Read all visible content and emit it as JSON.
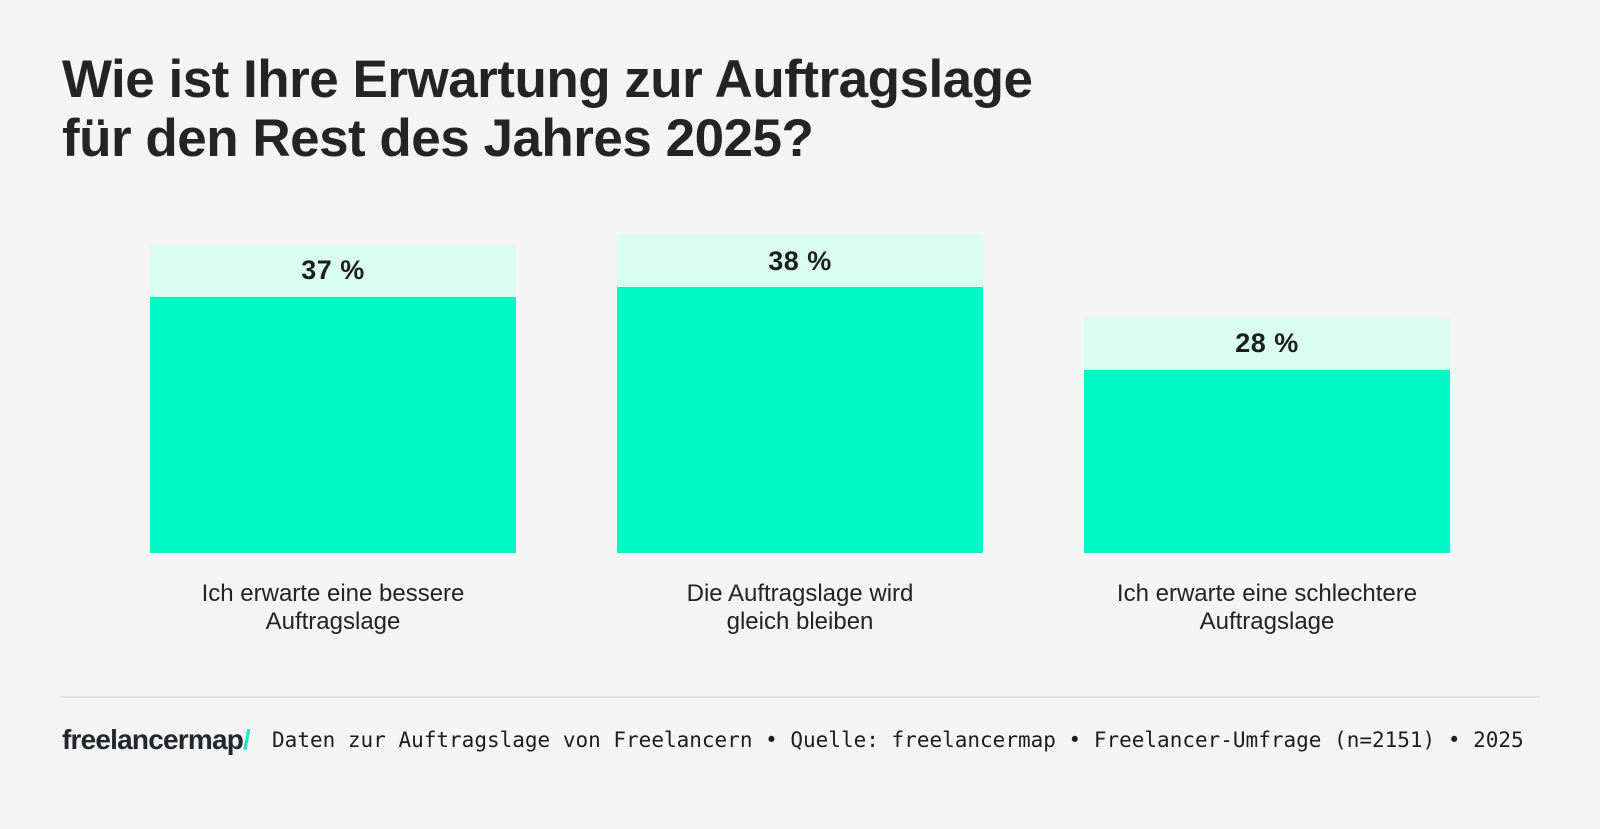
{
  "page": {
    "title": "Wie ist Ihre Erwartung zur Auftragslage\nfür den Rest des Jahres 2025?"
  },
  "chart_data": {
    "type": "bar",
    "title": "Wie ist Ihre Erwartung zur Auftragslage für den Rest des Jahres 2025?",
    "orientation": "vertical",
    "unit": "%",
    "categories": [
      "Ich erwarte eine bessere Auftragslage",
      "Die Auftragslage wird gleich bleiben",
      "Ich erwarte eine schlechtere Auftragslage"
    ],
    "values": [
      37,
      38,
      28
    ],
    "value_labels": [
      "37 %",
      "38 %",
      "28 %"
    ],
    "ylim": [
      0,
      38
    ],
    "grid": false,
    "legend": false,
    "axes_shown": false
  },
  "bars": [
    {
      "value": 37,
      "value_label": "37 %",
      "label": "Ich erwarte eine bessere\nAuftragslage"
    },
    {
      "value": 38,
      "value_label": "38 %",
      "label": "Die Auftragslage wird\ngleich bleiben"
    },
    {
      "value": 28,
      "value_label": "28 %",
      "label": "Ich erwarte eine schlechtere\nAuftragslage"
    }
  ],
  "footer": {
    "logo_text": "freelancermap",
    "logo_slash": "/",
    "source_text": "Daten zur Auftragslage von Freelancern • Quelle: freelancermap • Freelancer-Umfrage (n=2151) • 2025"
  },
  "colors": {
    "background": "#f4f4f4",
    "bar": "#00f8c4",
    "bar_header": "#d9fdf0",
    "accent_slash": "#1fe8c4",
    "text": "#232323",
    "divider": "#e4e4e4"
  }
}
